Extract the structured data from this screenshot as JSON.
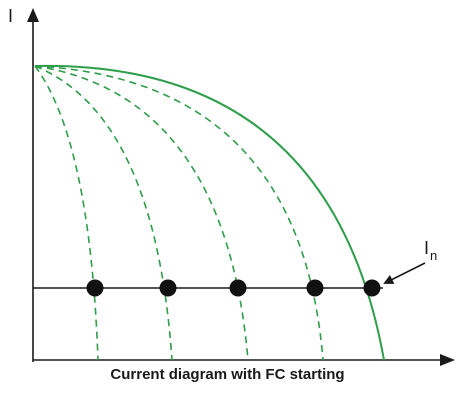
{
  "y_axis_label": "I",
  "marker_label": "I",
  "marker_subscript": "n",
  "caption": "Current diagram with FC starting",
  "colors": {
    "curve": "#2e9e4a",
    "axis": "#1a1a1a",
    "dot": "#111111",
    "background": "#ffffff"
  }
}
